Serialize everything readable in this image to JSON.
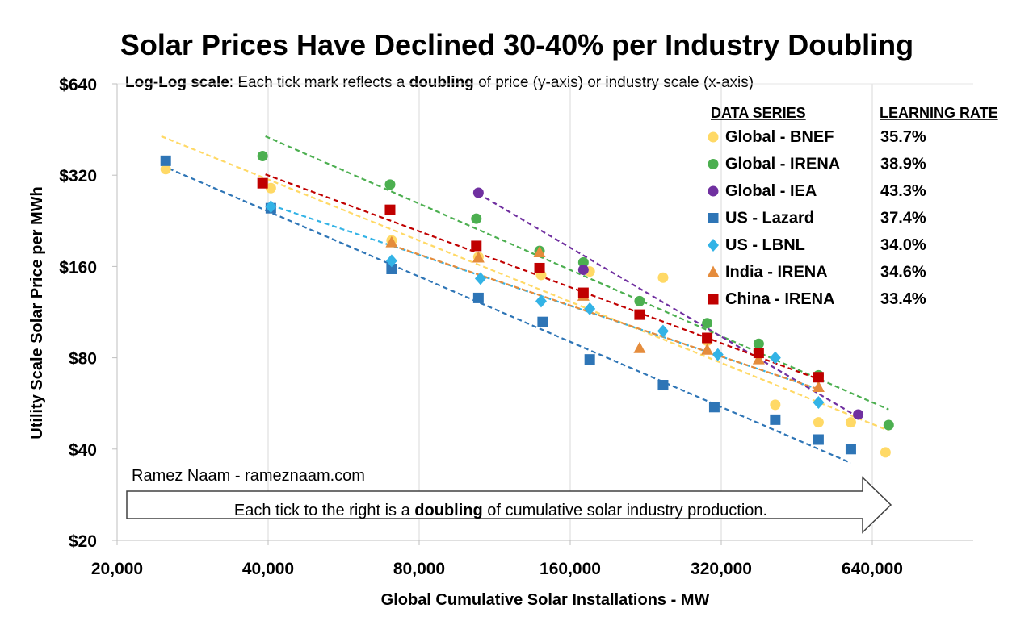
{
  "chart_data": {
    "type": "scatter",
    "title": "Solar Prices Have Declined 30-40% per Industry Doubling",
    "subtitle": {
      "bold_lead": "Log-Log scale",
      "part1": ": Each tick mark reflects a ",
      "bold_word": "doubling",
      "part2": " of price (y-axis) or industry scale (x-axis)"
    },
    "xlabel": "Global Cumulative Solar Installations - MW",
    "ylabel": "Utility Scale Solar Price per MWh",
    "x_scale": "log2",
    "y_scale": "log2",
    "xlim": [
      20000,
      640000
    ],
    "ylim": [
      20,
      640
    ],
    "x_ticks": [
      20000,
      40000,
      80000,
      160000,
      320000,
      640000
    ],
    "x_tick_labels": [
      "20,000",
      "40,000",
      "80,000",
      "160,000",
      "320,000",
      "640,000"
    ],
    "y_ticks": [
      20,
      40,
      80,
      160,
      320,
      640
    ],
    "y_tick_labels": [
      "$20",
      "$40",
      "$80",
      "$160",
      "$320",
      "$640"
    ],
    "grid": "vertical",
    "legend": {
      "placement": "top-right",
      "header_series": "DATA SERIES",
      "header_rate": "LEARNING RATE"
    },
    "series": [
      {
        "name": "Global - BNEF",
        "learning_rate": "35.7%",
        "color": "#FFD966",
        "marker": "circle",
        "points": [
          [
            25000,
            335
          ],
          [
            40500,
            290
          ],
          [
            70500,
            195
          ],
          [
            105000,
            172
          ],
          [
            140000,
            150
          ],
          [
            175000,
            154
          ],
          [
            245000,
            147
          ],
          [
            300000,
            91
          ],
          [
            410000,
            56
          ],
          [
            500000,
            49
          ],
          [
            580000,
            49
          ],
          [
            680000,
            39
          ]
        ],
        "trend": [
          [
            24500,
            430
          ],
          [
            690000,
            46
          ]
        ]
      },
      {
        "name": "Global - IRENA",
        "learning_rate": "38.9%",
        "color": "#4CAF50",
        "marker": "circle",
        "points": [
          [
            39000,
            370
          ],
          [
            70000,
            298
          ],
          [
            104000,
            230
          ],
          [
            139000,
            180
          ],
          [
            170000,
            165
          ],
          [
            220000,
            123
          ],
          [
            300000,
            104
          ],
          [
            380000,
            89
          ],
          [
            500000,
            70
          ],
          [
            690000,
            48
          ]
        ],
        "trend": [
          [
            39500,
            430
          ],
          [
            690000,
            54
          ]
        ]
      },
      {
        "name": "Global - IEA",
        "learning_rate": "43.3%",
        "color": "#7030A0",
        "marker": "circle",
        "points": [
          [
            105000,
            280
          ],
          [
            170000,
            156
          ],
          [
            600000,
            52
          ]
        ],
        "trend": [
          [
            105000,
            278
          ],
          [
            600000,
            51
          ]
        ]
      },
      {
        "name": "US - Lazard",
        "learning_rate": "37.4%",
        "color": "#2E75B6",
        "marker": "square",
        "points": [
          [
            25000,
            357
          ],
          [
            40500,
            249
          ],
          [
            70500,
            157
          ],
          [
            105000,
            126
          ],
          [
            141000,
            105
          ],
          [
            175000,
            79
          ],
          [
            245000,
            65
          ],
          [
            310000,
            55
          ],
          [
            410000,
            50
          ],
          [
            500000,
            43
          ],
          [
            580000,
            40
          ]
        ],
        "trend": [
          [
            24500,
            345
          ],
          [
            580000,
            36
          ]
        ]
      },
      {
        "name": "US - LBNL",
        "learning_rate": "34.0%",
        "color": "#33B3E6",
        "marker": "diamond",
        "points": [
          [
            40500,
            252
          ],
          [
            70500,
            167
          ],
          [
            106000,
            146
          ],
          [
            140000,
            123
          ],
          [
            175000,
            116
          ],
          [
            245000,
            98
          ],
          [
            315000,
            82
          ],
          [
            410000,
            80
          ],
          [
            500000,
            57
          ]
        ],
        "trend": [
          [
            40500,
            255
          ],
          [
            500000,
            63
          ]
        ]
      },
      {
        "name": "India - IRENA",
        "learning_rate": "34.6%",
        "color": "#E58C3C",
        "marker": "triangle",
        "points": [
          [
            70500,
            192
          ],
          [
            105000,
            171
          ],
          [
            139000,
            178
          ],
          [
            170000,
            128
          ],
          [
            220000,
            86
          ],
          [
            300000,
            85
          ],
          [
            380000,
            79
          ],
          [
            500000,
            64
          ]
        ],
        "trend": [
          [
            70500,
            188
          ],
          [
            500000,
            63
          ]
        ]
      },
      {
        "name": "China - IRENA",
        "learning_rate": "33.4%",
        "color": "#C00000",
        "marker": "square",
        "points": [
          [
            39000,
            301
          ],
          [
            70000,
            246
          ],
          [
            104000,
            187
          ],
          [
            139000,
            158
          ],
          [
            170000,
            131
          ],
          [
            220000,
            111
          ],
          [
            300000,
            93
          ],
          [
            380000,
            83
          ],
          [
            500000,
            69
          ]
        ],
        "trend": [
          [
            39500,
            322
          ],
          [
            500000,
            68
          ]
        ]
      }
    ],
    "annotations": {
      "credit": "Ramez Naam - rameznaam.com",
      "arrow": {
        "part1": "Each tick to the right is a ",
        "bold_word": "doubling",
        "part2": " of cumulative solar industry production."
      }
    }
  }
}
